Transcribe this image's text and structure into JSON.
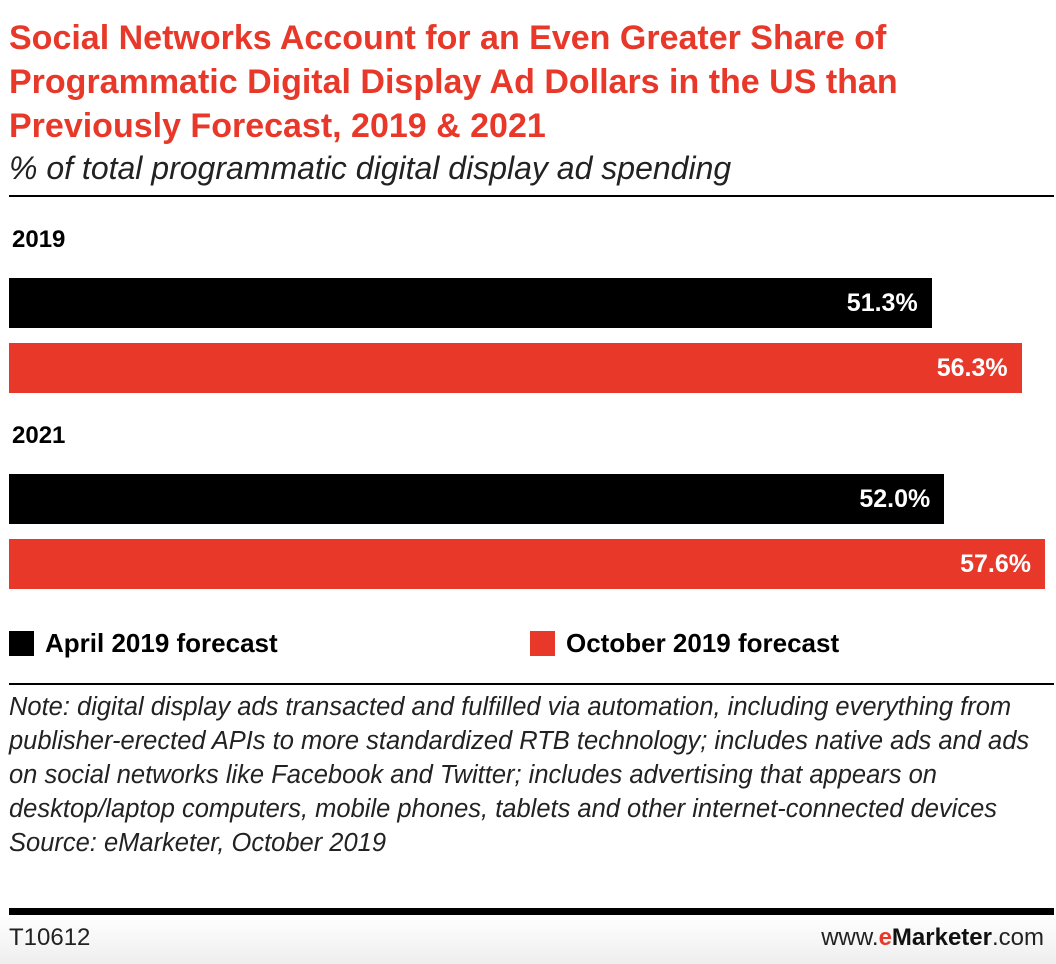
{
  "chart_data": {
    "type": "bar",
    "orientation": "horizontal",
    "title": "Social Networks Account for an Even Greater Share of Programmatic Digital Display Ad Dollars in the US than Previously Forecast, 2019 & 2021",
    "subtitle": "% of total programmatic digital display ad spending",
    "categories": [
      "2019",
      "2021"
    ],
    "series": [
      {
        "name": "April 2019 forecast",
        "values": [
          51.3,
          52.0
        ],
        "labels": [
          "51.3%",
          "52.0%"
        ],
        "color": "#000000"
      },
      {
        "name": "October 2019 forecast",
        "values": [
          56.3,
          57.6
        ],
        "labels": [
          "56.3%",
          "57.6%"
        ],
        "color": "#e8382a"
      }
    ],
    "xlim": [
      0,
      57.6
    ],
    "grid": false,
    "legend": "bottom"
  },
  "note": "Note: digital display ads transacted and fulfilled via automation, including everything from publisher-erected APIs to more standardized RTB technology; includes native ads and ads on social networks like Facebook and Twitter; includes advertising that appears on desktop/laptop computers, mobile phones, tablets and other internet-connected devices",
  "source": "Source: eMarketer, October 2019",
  "footer": {
    "id": "T10612",
    "url_prefix": "www.",
    "url_e": "e",
    "url_brand": "Marketer",
    "url_suffix": ".com"
  }
}
